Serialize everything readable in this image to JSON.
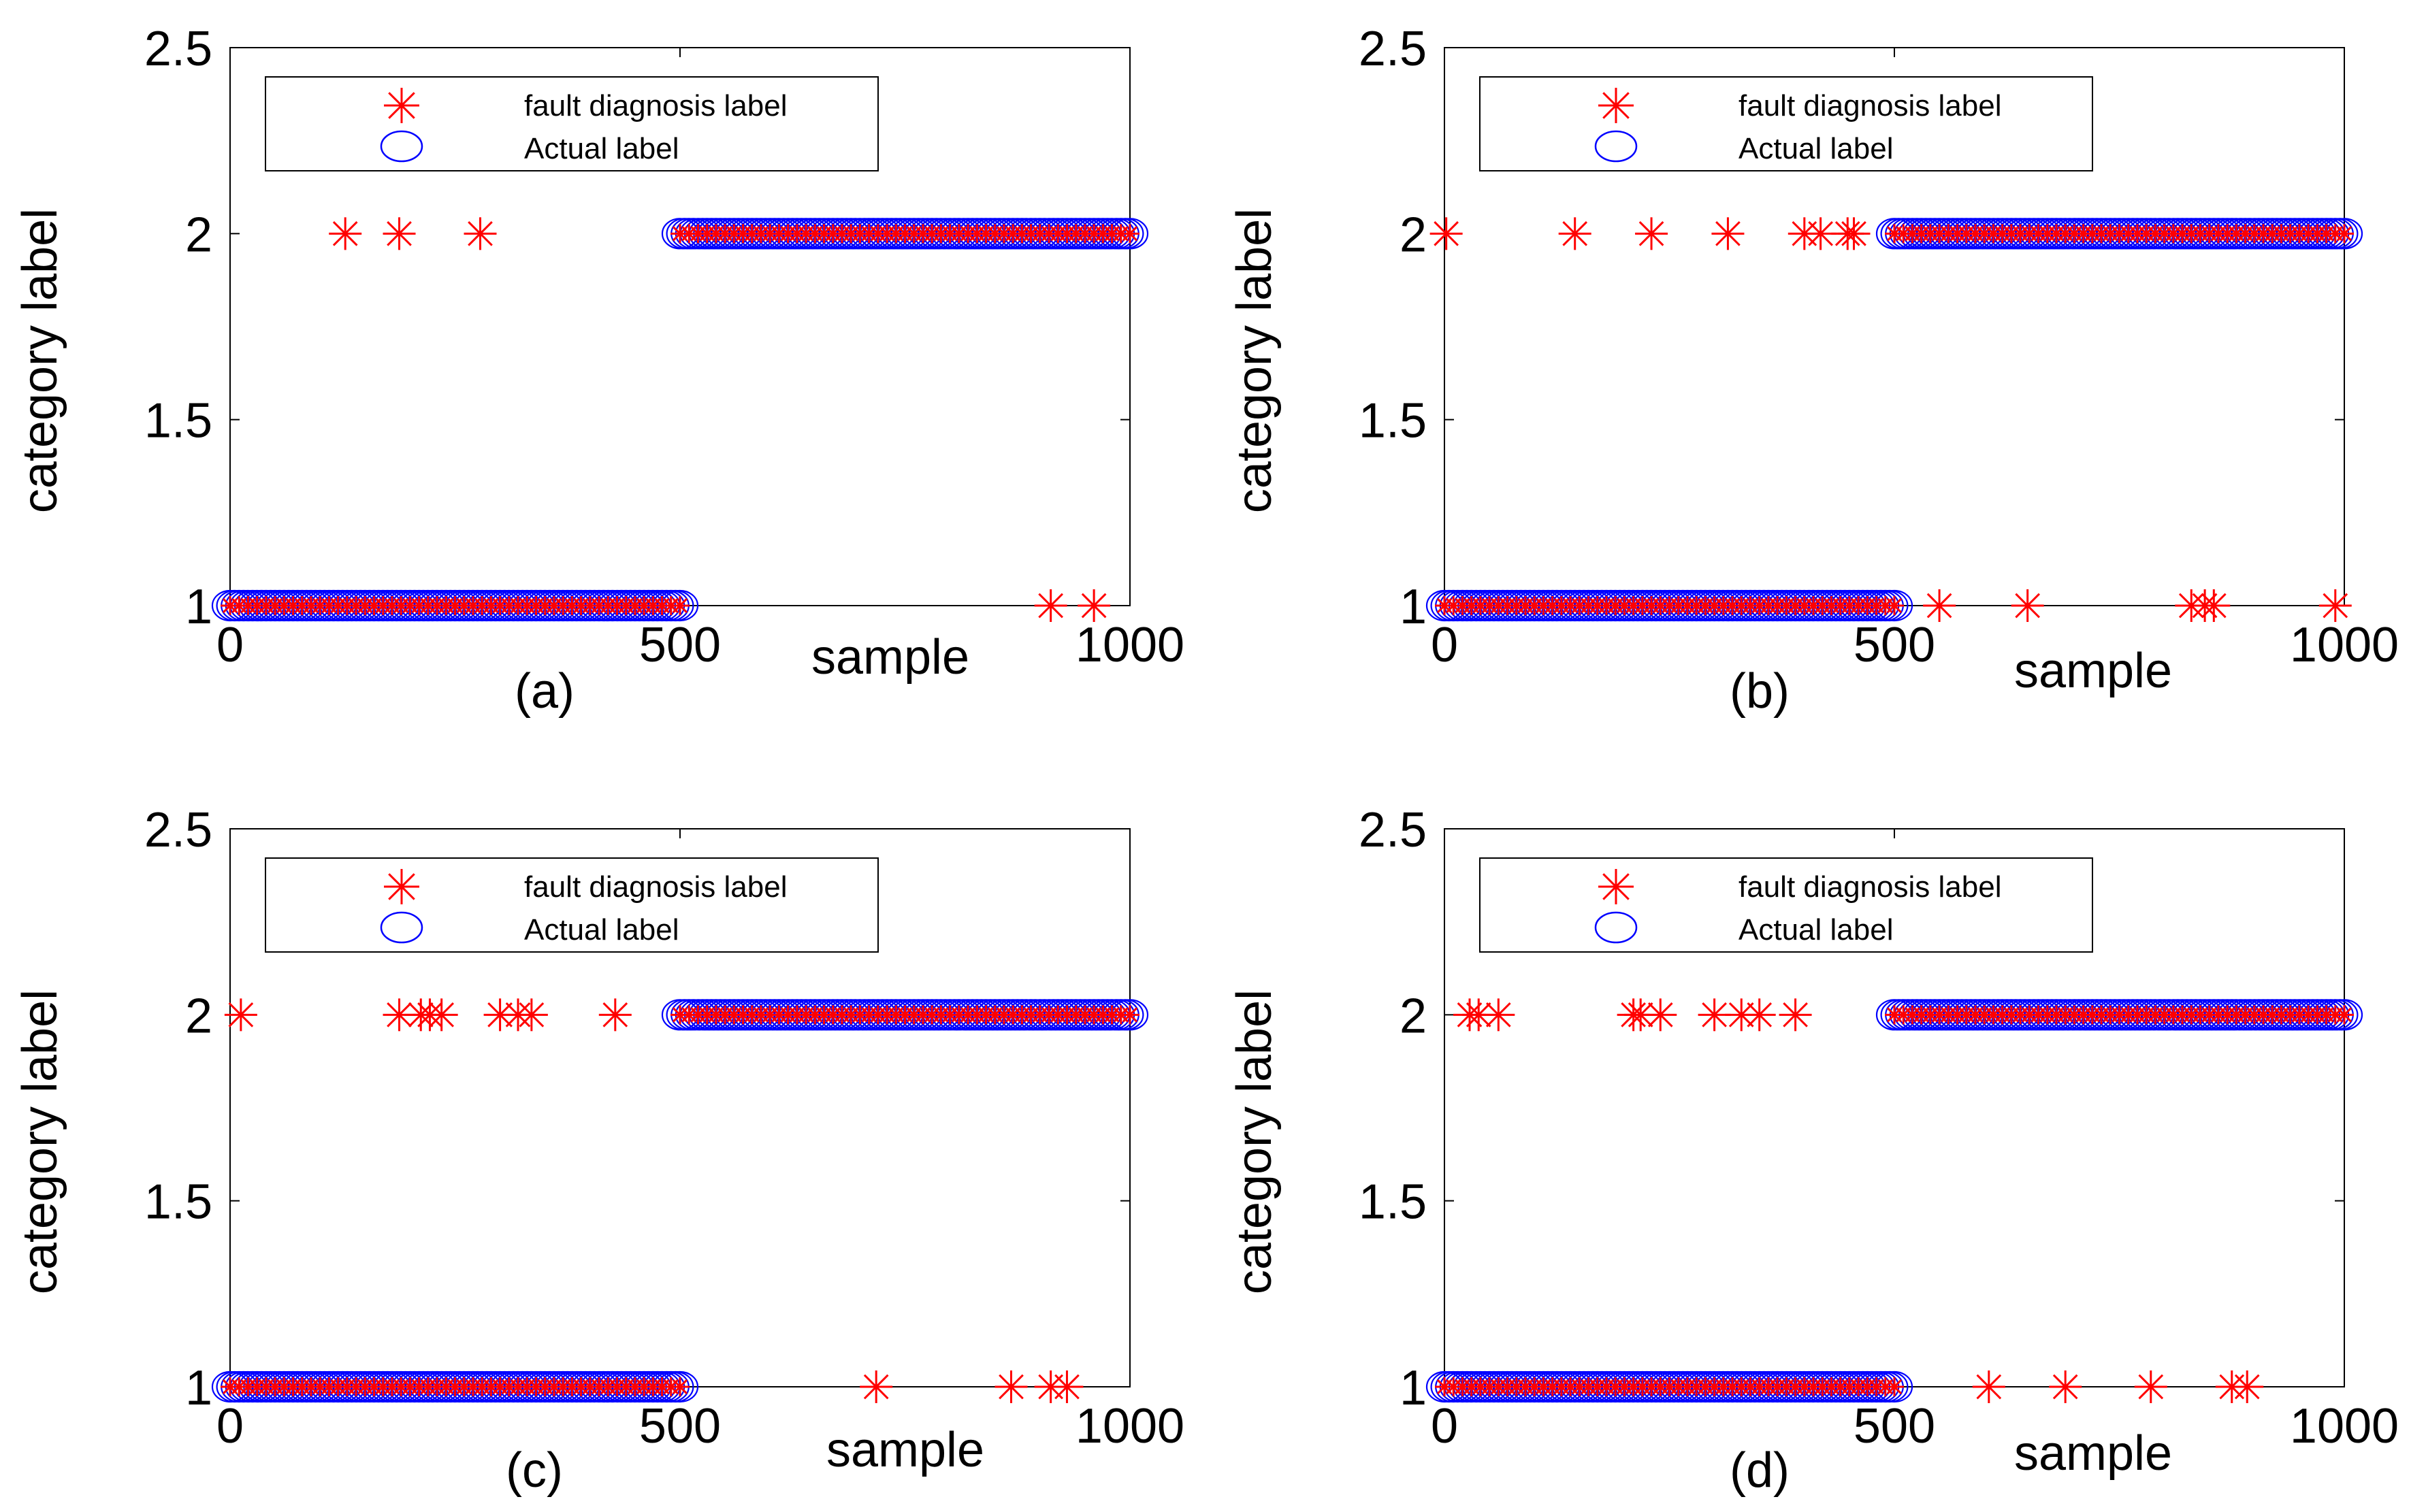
{
  "figure": {
    "colors": {
      "diagnosis": "#ff0000",
      "actual": "#0000ff",
      "axes": "#000000",
      "background": "#ffffff"
    }
  },
  "chart_data": [
    {
      "type": "scatter",
      "panel_label": "(a)",
      "xlabel": "sample",
      "ylabel": "category label",
      "xlim": [
        0,
        1000
      ],
      "ylim": [
        1,
        2.5
      ],
      "xticks": [
        "0",
        "500",
        "1000"
      ],
      "yticks": [
        "1",
        "1.5",
        "2",
        "2.5"
      ],
      "legend": {
        "location": "top",
        "entries": [
          "fault diagnosis label",
          "Actual label"
        ]
      },
      "series": [
        {
          "name": "fault diagnosis label",
          "marker": "asterisk",
          "color": "#ff0000",
          "segments": [
            {
              "x_from": 0,
              "x_to": 500,
              "y": 1
            },
            {
              "x_from": 500,
              "x_to": 1000,
              "y": 2
            }
          ],
          "misclassified": [
            {
              "x": 128,
              "y": 2
            },
            {
              "x": 188,
              "y": 2
            },
            {
              "x": 278,
              "y": 2
            },
            {
              "x": 912,
              "y": 1
            },
            {
              "x": 960,
              "y": 1
            }
          ]
        },
        {
          "name": "Actual label",
          "marker": "circle",
          "color": "#0000ff",
          "segments": [
            {
              "x_from": 0,
              "x_to": 500,
              "y": 1
            },
            {
              "x_from": 500,
              "x_to": 1000,
              "y": 2
            }
          ]
        }
      ]
    },
    {
      "type": "scatter",
      "panel_label": "(b)",
      "xlabel": "sample",
      "ylabel": "category label",
      "xlim": [
        0,
        1000
      ],
      "ylim": [
        1,
        2.5
      ],
      "xticks": [
        "0",
        "500",
        "1000"
      ],
      "yticks": [
        "1",
        "1.5",
        "2",
        "2.5"
      ],
      "legend": {
        "location": "top",
        "entries": [
          "fault diagnosis label",
          "Actual label"
        ]
      },
      "series": [
        {
          "name": "fault diagnosis label",
          "marker": "asterisk",
          "color": "#ff0000",
          "segments": [
            {
              "x_from": 0,
              "x_to": 500,
              "y": 1
            },
            {
              "x_from": 500,
              "x_to": 1000,
              "y": 2
            }
          ],
          "misclassified": [
            {
              "x": 2,
              "y": 2
            },
            {
              "x": 145,
              "y": 2
            },
            {
              "x": 230,
              "y": 2
            },
            {
              "x": 315,
              "y": 2
            },
            {
              "x": 400,
              "y": 2
            },
            {
              "x": 418,
              "y": 2
            },
            {
              "x": 448,
              "y": 2
            },
            {
              "x": 455,
              "y": 2
            },
            {
              "x": 550,
              "y": 1
            },
            {
              "x": 648,
              "y": 1
            },
            {
              "x": 830,
              "y": 1
            },
            {
              "x": 845,
              "y": 1
            },
            {
              "x": 855,
              "y": 1
            },
            {
              "x": 990,
              "y": 1
            }
          ]
        },
        {
          "name": "Actual label",
          "marker": "circle",
          "color": "#0000ff",
          "segments": [
            {
              "x_from": 0,
              "x_to": 500,
              "y": 1
            },
            {
              "x_from": 500,
              "x_to": 1000,
              "y": 2
            }
          ]
        }
      ]
    },
    {
      "type": "scatter",
      "panel_label": "(c)",
      "xlabel": "sample",
      "ylabel": "category label",
      "xlim": [
        0,
        1000
      ],
      "ylim": [
        1,
        2.5
      ],
      "xticks": [
        "0",
        "500",
        "1000"
      ],
      "yticks": [
        "1",
        "1.5",
        "2",
        "2.5"
      ],
      "legend": {
        "location": "top",
        "entries": [
          "fault diagnosis label",
          "Actual label"
        ]
      },
      "series": [
        {
          "name": "fault diagnosis label",
          "marker": "asterisk",
          "color": "#ff0000",
          "segments": [
            {
              "x_from": 0,
              "x_to": 500,
              "y": 1
            },
            {
              "x_from": 500,
              "x_to": 1000,
              "y": 2
            }
          ],
          "misclassified": [
            {
              "x": 12,
              "y": 2
            },
            {
              "x": 188,
              "y": 2
            },
            {
              "x": 212,
              "y": 2
            },
            {
              "x": 222,
              "y": 2
            },
            {
              "x": 235,
              "y": 2
            },
            {
              "x": 300,
              "y": 2
            },
            {
              "x": 320,
              "y": 2
            },
            {
              "x": 335,
              "y": 2
            },
            {
              "x": 428,
              "y": 2
            },
            {
              "x": 718,
              "y": 1
            },
            {
              "x": 868,
              "y": 1
            },
            {
              "x": 912,
              "y": 1
            },
            {
              "x": 930,
              "y": 1
            }
          ]
        },
        {
          "name": "Actual label",
          "marker": "circle",
          "color": "#0000ff",
          "segments": [
            {
              "x_from": 0,
              "x_to": 500,
              "y": 1
            },
            {
              "x_from": 500,
              "x_to": 1000,
              "y": 2
            }
          ]
        }
      ]
    },
    {
      "type": "scatter",
      "panel_label": "(d)",
      "xlabel": "sample",
      "ylabel": "category label",
      "xlim": [
        0,
        1000
      ],
      "ylim": [
        1,
        2.5
      ],
      "xticks": [
        "0",
        "500",
        "1000"
      ],
      "yticks": [
        "1",
        "1.5",
        "2",
        "2.5"
      ],
      "legend": {
        "location": "top",
        "entries": [
          "fault diagnosis label",
          "Actual label"
        ]
      },
      "series": [
        {
          "name": "fault diagnosis label",
          "marker": "asterisk",
          "color": "#ff0000",
          "segments": [
            {
              "x_from": 0,
              "x_to": 500,
              "y": 1
            },
            {
              "x_from": 500,
              "x_to": 1000,
              "y": 2
            }
          ],
          "misclassified": [
            {
              "x": 28,
              "y": 2
            },
            {
              "x": 38,
              "y": 2
            },
            {
              "x": 60,
              "y": 2
            },
            {
              "x": 210,
              "y": 2
            },
            {
              "x": 218,
              "y": 2
            },
            {
              "x": 240,
              "y": 2
            },
            {
              "x": 300,
              "y": 2
            },
            {
              "x": 330,
              "y": 2
            },
            {
              "x": 350,
              "y": 2
            },
            {
              "x": 390,
              "y": 2
            },
            {
              "x": 605,
              "y": 1
            },
            {
              "x": 690,
              "y": 1
            },
            {
              "x": 785,
              "y": 1
            },
            {
              "x": 875,
              "y": 1
            },
            {
              "x": 892,
              "y": 1
            }
          ]
        },
        {
          "name": "Actual label",
          "marker": "circle",
          "color": "#0000ff",
          "segments": [
            {
              "x_from": 0,
              "x_to": 500,
              "y": 1
            },
            {
              "x_from": 500,
              "x_to": 1000,
              "y": 2
            }
          ]
        }
      ]
    }
  ]
}
